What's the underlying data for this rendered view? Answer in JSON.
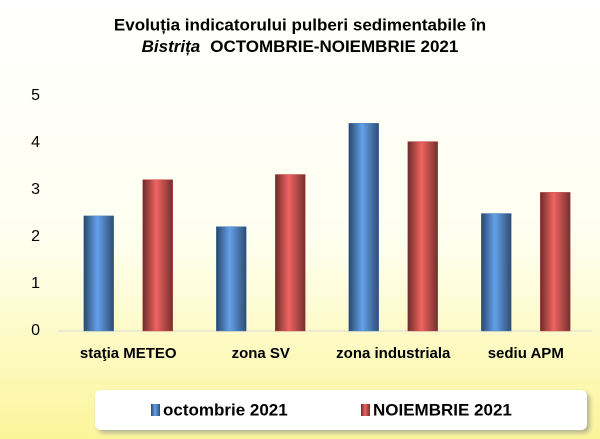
{
  "chart_data": {
    "type": "bar",
    "title": {
      "line1": "Evoluția indicatorului pulberi sedimentabile în",
      "place": "Bistrița",
      "period": "OCTOMBRIE-NOIEMBRIE 2021"
    },
    "categories": [
      "staţia METEO",
      "zona SV",
      "zona industriala",
      "sediu APM"
    ],
    "series": [
      {
        "name": "octombrie 2021",
        "color": "#4f81bd",
        "values": [
          2.45,
          2.22,
          4.42,
          2.5
        ]
      },
      {
        "name": "NOIEMBRIE 2021",
        "color": "#c0504d",
        "values": [
          3.22,
          3.33,
          4.03,
          2.95
        ]
      }
    ],
    "ylim": [
      0,
      5
    ],
    "yticks": [
      0,
      1,
      2,
      3,
      4,
      5
    ],
    "grid": false,
    "legend": "bottom"
  }
}
